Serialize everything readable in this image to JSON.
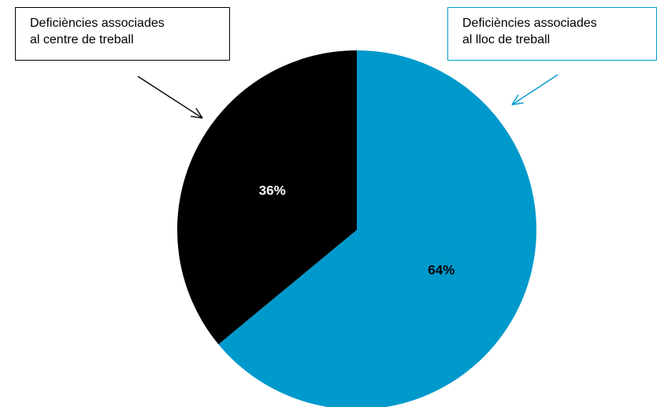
{
  "chart_data": {
    "type": "pie",
    "title": "",
    "slices": [
      {
        "label": "Deficiències associades al lloc de treball",
        "value": 64,
        "display": "64%",
        "color": "#0099cc",
        "label_color": "#000000"
      },
      {
        "label": "Deficiències associades al centre de treball",
        "value": 36,
        "display": "36%",
        "color": "#000000",
        "label_color": "#ffffff"
      }
    ],
    "start_angle_deg": 0,
    "direction": "clockwise",
    "legend": "callouts"
  },
  "callouts": {
    "centre": {
      "line1": "Deficiències associades",
      "line2": "al centre de treball",
      "border_color": "#000000",
      "arrow_color": "#000000"
    },
    "lloc": {
      "line1": "Deficiències associades",
      "line2": "al lloc de treball",
      "border_color": "#0099cc",
      "arrow_color": "#0099cc"
    }
  }
}
